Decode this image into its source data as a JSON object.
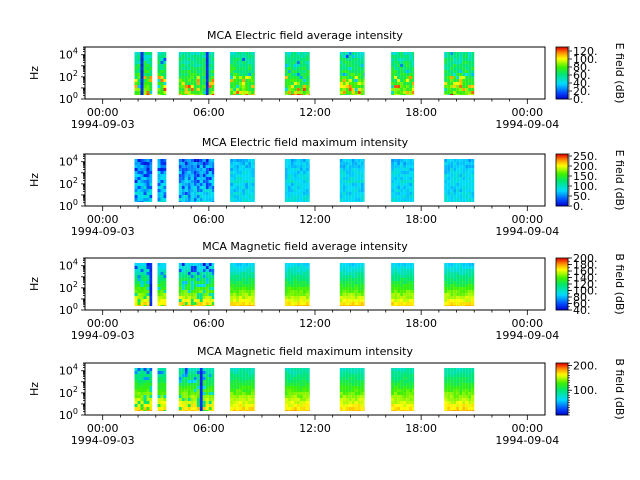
{
  "chart_data": [
    {
      "type": "heatmap",
      "title": "MCA  Electric field average intensity",
      "ylabel": "Hz",
      "yscale": "log",
      "ylim": [
        1,
        50000
      ],
      "ytick_labels": [
        {
          "base": "10",
          "exp": "0"
        },
        {
          "base": "10",
          "exp": "2"
        },
        {
          "base": "10",
          "exp": "4"
        }
      ],
      "xtick_labels": [
        {
          "time": "00:00",
          "date": "1994-09-03"
        },
        {
          "time": "06:00",
          "date": ""
        },
        {
          "time": "12:00",
          "date": ""
        },
        {
          "time": "18:00",
          "date": ""
        },
        {
          "time": "00:00",
          "date": "1994-09-04"
        }
      ],
      "colorbar": {
        "label": "E field (dB)",
        "range": [
          0,
          130
        ],
        "tick_labels": [
          "0.",
          "20.",
          "40.",
          "60.",
          "80.",
          "100.",
          "120."
        ],
        "tick_values": [
          0,
          20,
          40,
          60,
          80,
          100,
          120
        ]
      },
      "pattern": "avg"
    },
    {
      "type": "heatmap",
      "title": "MCA  Electric field maximum intensity",
      "ylabel": "Hz",
      "yscale": "log",
      "ylim": [
        1,
        50000
      ],
      "ytick_labels": [
        {
          "base": "10",
          "exp": "0"
        },
        {
          "base": "10",
          "exp": "2"
        },
        {
          "base": "10",
          "exp": "4"
        }
      ],
      "xtick_labels": [
        {
          "time": "00:00",
          "date": "1994-09-03"
        },
        {
          "time": "06:00",
          "date": ""
        },
        {
          "time": "12:00",
          "date": ""
        },
        {
          "time": "18:00",
          "date": ""
        },
        {
          "time": "00:00",
          "date": "1994-09-04"
        }
      ],
      "colorbar": {
        "label": "E field (dB)",
        "range": [
          0,
          260
        ],
        "tick_labels": [
          "0.",
          "50.",
          "100.",
          "150.",
          "200.",
          "250."
        ],
        "tick_values": [
          0,
          50,
          100,
          150,
          200,
          250
        ]
      },
      "pattern": "emax"
    },
    {
      "type": "heatmap",
      "title": "MCA  Magnetic field average intensity",
      "ylabel": "Hz",
      "yscale": "log",
      "ylim": [
        1,
        50000
      ],
      "ytick_labels": [
        {
          "base": "10",
          "exp": "0"
        },
        {
          "base": "10",
          "exp": "2"
        },
        {
          "base": "10",
          "exp": "4"
        }
      ],
      "xtick_labels": [
        {
          "time": "00:00",
          "date": "1994-09-03"
        },
        {
          "time": "06:00",
          "date": ""
        },
        {
          "time": "12:00",
          "date": ""
        },
        {
          "time": "18:00",
          "date": ""
        },
        {
          "time": "00:00",
          "date": "1994-09-04"
        }
      ],
      "colorbar": {
        "label": "B field (dB)",
        "range": [
          40,
          200
        ],
        "tick_labels": [
          "40.",
          "60.",
          "80.",
          "100.",
          "120.",
          "140.",
          "160.",
          "180.",
          "200."
        ],
        "tick_values": [
          40,
          60,
          80,
          100,
          120,
          140,
          160,
          180,
          200
        ]
      },
      "pattern": "bavg"
    },
    {
      "type": "heatmap",
      "title": "MCA  Magnetic field maximum intensity",
      "ylabel": "Hz",
      "yscale": "log",
      "ylim": [
        1,
        50000
      ],
      "ytick_labels": [
        {
          "base": "10",
          "exp": "0"
        },
        {
          "base": "10",
          "exp": "2"
        },
        {
          "base": "10",
          "exp": "4"
        }
      ],
      "xtick_labels": [
        {
          "time": "00:00",
          "date": "1994-09-03"
        },
        {
          "time": "06:00",
          "date": ""
        },
        {
          "time": "12:00",
          "date": ""
        },
        {
          "time": "18:00",
          "date": ""
        },
        {
          "time": "00:00",
          "date": "1994-09-04"
        }
      ],
      "colorbar": {
        "label": "B field (dB)",
        "range": [
          0,
          210
        ],
        "tick_labels": [
          "100.",
          "200."
        ],
        "tick_values": [
          100,
          200
        ]
      },
      "pattern": "bmax"
    }
  ],
  "shared": {
    "x_range_hours": [
      -1,
      25
    ],
    "x_tick_hours": [
      0,
      6,
      12,
      18,
      24
    ],
    "data_intervals_hours": [
      [
        1.8,
        2.8
      ],
      [
        3.1,
        3.6
      ],
      [
        4.3,
        6.3
      ],
      [
        7.2,
        8.6
      ],
      [
        10.3,
        11.7
      ],
      [
        13.4,
        14.8
      ],
      [
        16.3,
        17.6
      ],
      [
        19.3,
        21.0
      ]
    ],
    "colormap": "rainbow (blue → cyan → green → yellow → red)"
  }
}
